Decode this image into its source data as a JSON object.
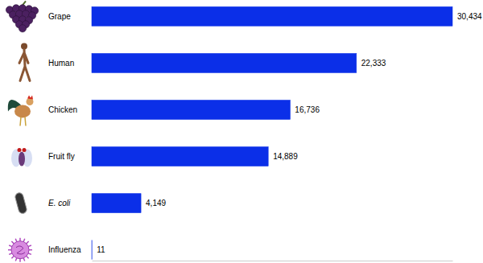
{
  "chart_data": {
    "type": "bar",
    "orientation": "horizontal",
    "categories": [
      "Grape",
      "Human",
      "Chicken",
      "Fruit fly",
      "E. coli",
      "Influenza"
    ],
    "values": [
      30434,
      22333,
      16736,
      14889,
      4149,
      11
    ],
    "value_labels": [
      "30,434",
      "22,333",
      "16,736",
      "14,889",
      "4,149",
      "11"
    ],
    "color": "#0b2fe8",
    "data_labels": true,
    "xlim": [
      0,
      30434
    ],
    "xticks": [],
    "tick_labels": "y",
    "grid": false
  }
}
